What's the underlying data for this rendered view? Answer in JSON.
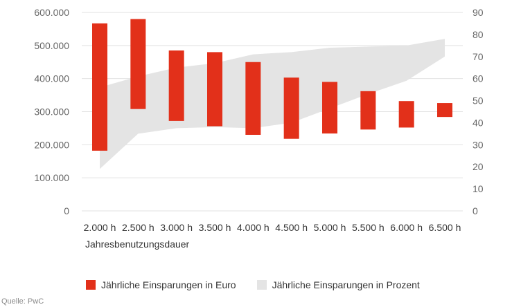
{
  "chart_data": {
    "type": "bar",
    "title": "",
    "xlabel": "Jahresbenutzungsdauer",
    "ylabel_left": "",
    "ylabel_right": "",
    "categories": [
      "2.000 h",
      "2.500 h",
      "3.000 h",
      "3.500 h",
      "4.000 h",
      "4.500 h",
      "5.000 h",
      "5.500 h",
      "6.000 h",
      "6.500 h"
    ],
    "left_axis": {
      "ticks": [
        "0",
        "100.000",
        "200.000",
        "300.000",
        "400.000",
        "500.000",
        "600.000"
      ],
      "tick_values": [
        0,
        100000,
        200000,
        300000,
        400000,
        500000,
        600000
      ],
      "ylim": [
        0,
        600000
      ]
    },
    "right_axis": {
      "ticks": [
        "0",
        "10",
        "20",
        "30",
        "40",
        "50",
        "60",
        "70",
        "80",
        "90"
      ],
      "tick_values": [
        0,
        10,
        20,
        30,
        40,
        50,
        60,
        70,
        80,
        90
      ],
      "ylim": [
        0,
        90
      ]
    },
    "series": [
      {
        "name": "Jährliche Einsparungen in Euro",
        "type": "floating-bar",
        "axis": "left",
        "color": "#e2301a",
        "low": [
          182000,
          308000,
          272000,
          256000,
          230000,
          218000,
          234000,
          246000,
          252000,
          284000
        ],
        "high": [
          567000,
          580000,
          485000,
          480000,
          450000,
          403000,
          390000,
          362000,
          332000,
          326000
        ]
      },
      {
        "name": "Jährliche Einsparungen in Prozent",
        "type": "area-range",
        "axis": "right",
        "color": "#e4e4e4",
        "low": [
          19,
          35,
          37.5,
          38,
          37.5,
          40,
          46.5,
          53,
          59,
          70
        ],
        "high": [
          56,
          61,
          65,
          67,
          71,
          72,
          74,
          74.5,
          75,
          78
        ]
      }
    ],
    "grid": true,
    "legend_position": "bottom"
  },
  "source": "Quelle: PwC"
}
